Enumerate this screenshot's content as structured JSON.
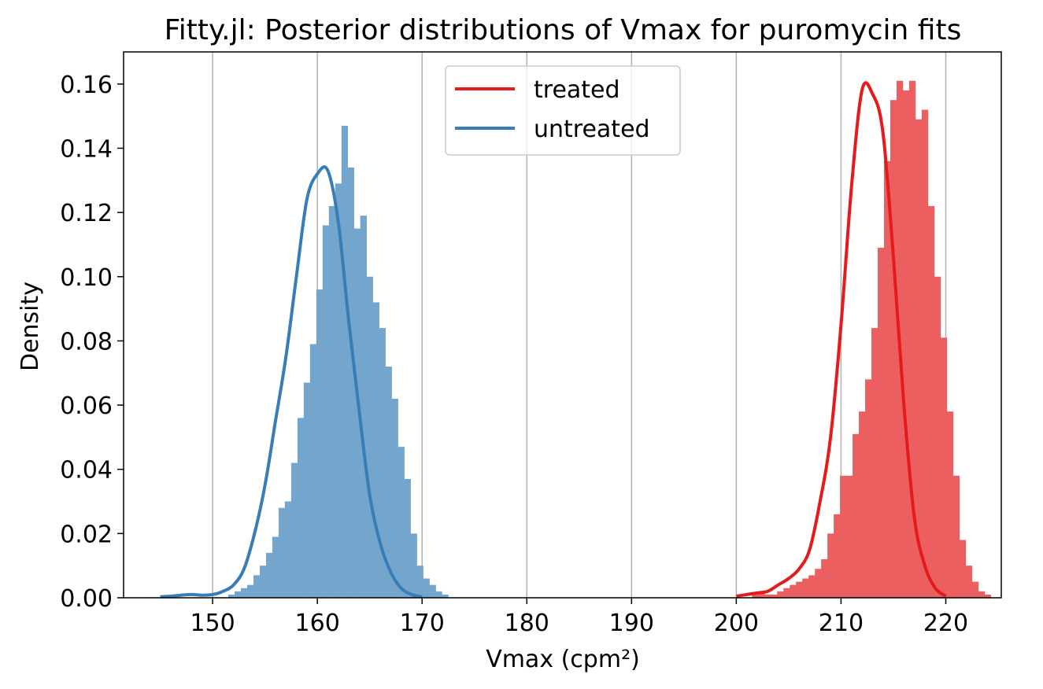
{
  "chart_data": {
    "type": "histogram",
    "title": "Fitty.jl: Posterior distributions of Vmax for puromycin fits",
    "xlabel": "Vmax (cpm²)",
    "ylabel": "Density",
    "xlim": [
      141.5,
      225.3
    ],
    "ylim": [
      0,
      0.17
    ],
    "xticks": [
      150,
      160,
      170,
      180,
      190,
      200,
      210,
      220
    ],
    "yticks": [
      0.0,
      0.02,
      0.04,
      0.06,
      0.08,
      0.1,
      0.12,
      0.14,
      0.16
    ],
    "ytick_labels": [
      "0.00",
      "0.02",
      "0.04",
      "0.06",
      "0.08",
      "0.10",
      "0.12",
      "0.14",
      "0.16"
    ],
    "grid": "vertical",
    "legend_position": "top-center",
    "series": [
      {
        "name": "treated",
        "color": "#e41a1c",
        "bar_color": "#ec5f60",
        "bin_start": 201.5,
        "bin_width": 0.6,
        "densities": [
          0.001,
          0.002,
          0.001,
          0.001,
          0.002,
          0.003,
          0.004,
          0.005,
          0.006,
          0.007,
          0.009,
          0.012,
          0.02,
          0.026,
          0.038,
          0.038,
          0.051,
          0.058,
          0.068,
          0.084,
          0.109,
          0.136,
          0.155,
          0.161,
          0.158,
          0.161,
          0.149,
          0.152,
          0.122,
          0.1,
          0.081,
          0.058,
          0.038,
          0.018,
          0.01,
          0.005,
          0.002,
          0.001
        ],
        "kde": [
          [
            200,
            0.0005
          ],
          [
            201,
            0.001
          ],
          [
            202,
            0.0015
          ],
          [
            203,
            0.002
          ],
          [
            204,
            0.004
          ],
          [
            205,
            0.006
          ],
          [
            206,
            0.009
          ],
          [
            207,
            0.015
          ],
          [
            208,
            0.03
          ],
          [
            209,
            0.05
          ],
          [
            210,
            0.085
          ],
          [
            211,
            0.128
          ],
          [
            212,
            0.158
          ],
          [
            213,
            0.157
          ],
          [
            214,
            0.145
          ],
          [
            215,
            0.106
          ],
          [
            216,
            0.06
          ],
          [
            217,
            0.025
          ],
          [
            218,
            0.01
          ],
          [
            219,
            0.003
          ],
          [
            220,
            0.0005
          ]
        ]
      },
      {
        "name": "untreated",
        "color": "#377eb8",
        "bar_color": "#74a5cd",
        "bin_start": 151.5,
        "bin_width": 0.6,
        "densities": [
          0.001,
          0.002,
          0.003,
          0.004,
          0.007,
          0.01,
          0.014,
          0.019,
          0.028,
          0.03,
          0.042,
          0.056,
          0.067,
          0.079,
          0.096,
          0.116,
          0.122,
          0.129,
          0.147,
          0.134,
          0.115,
          0.119,
          0.1,
          0.092,
          0.084,
          0.072,
          0.062,
          0.047,
          0.037,
          0.02,
          0.01,
          0.006,
          0.004,
          0.002,
          0.001
        ],
        "kde": [
          [
            145,
            0.0003
          ],
          [
            146,
            0.0005
          ],
          [
            147,
            0.0008
          ],
          [
            148,
            0.001
          ],
          [
            149,
            0.0008
          ],
          [
            150,
            0.001
          ],
          [
            151,
            0.002
          ],
          [
            152,
            0.004
          ],
          [
            153,
            0.009
          ],
          [
            154,
            0.02
          ],
          [
            155,
            0.035
          ],
          [
            156,
            0.055
          ],
          [
            157,
            0.075
          ],
          [
            158,
            0.1
          ],
          [
            159,
            0.124
          ],
          [
            160,
            0.132
          ],
          [
            161,
            0.133
          ],
          [
            162,
            0.117
          ],
          [
            163,
            0.086
          ],
          [
            164,
            0.058
          ],
          [
            165,
            0.032
          ],
          [
            166,
            0.017
          ],
          [
            167,
            0.008
          ],
          [
            168,
            0.003
          ],
          [
            169,
            0.001
          ],
          [
            170,
            0.0003
          ]
        ]
      }
    ]
  }
}
